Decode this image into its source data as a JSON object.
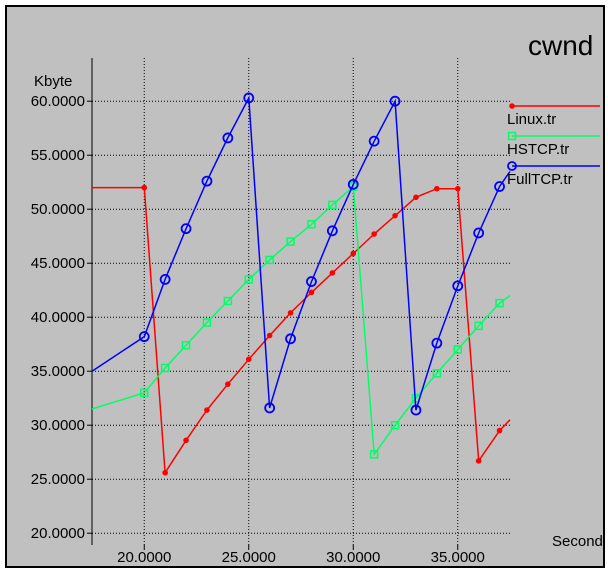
{
  "chart_data": {
    "type": "line",
    "title": "cwnd",
    "ylabel": "Kbyte",
    "xlabel": "Second",
    "xlim": [
      17.5,
      37.5
    ],
    "ylim": [
      19.0,
      64.0
    ],
    "x_ticks": [
      "20.0000",
      "25.0000",
      "30.0000",
      "35.0000"
    ],
    "y_ticks": [
      "20.0000",
      "25.0000",
      "30.0000",
      "35.0000",
      "40.0000",
      "45.0000",
      "50.0000",
      "55.0000",
      "60.0000"
    ],
    "x_tick_values": [
      20,
      25,
      30,
      35
    ],
    "y_tick_values": [
      20,
      25,
      30,
      35,
      40,
      45,
      50,
      55,
      60
    ],
    "grid": true,
    "legend_position": "right",
    "series": [
      {
        "name": "Linux.tr",
        "color": "#ff0000",
        "marker": "dot",
        "points": [
          [
            17.5,
            52.0
          ],
          [
            20,
            52.0
          ],
          [
            21,
            25.6
          ],
          [
            22,
            28.6
          ],
          [
            23,
            31.4
          ],
          [
            24,
            33.8
          ],
          [
            25,
            36.1
          ],
          [
            26,
            38.3
          ],
          [
            27,
            40.4
          ],
          [
            28,
            42.3
          ],
          [
            29,
            44.1
          ],
          [
            30,
            45.9
          ],
          [
            31,
            47.7
          ],
          [
            32,
            49.4
          ],
          [
            33,
            51.1
          ],
          [
            34,
            51.9
          ],
          [
            35,
            51.9
          ],
          [
            36,
            26.7
          ],
          [
            37,
            29.5
          ],
          [
            37.5,
            30.5
          ]
        ]
      },
      {
        "name": "HSTCP.tr",
        "color": "#00ff66",
        "marker": "square",
        "points": [
          [
            17.5,
            31.5
          ],
          [
            20,
            33.0
          ],
          [
            21,
            35.3
          ],
          [
            22,
            37.4
          ],
          [
            23,
            39.5
          ],
          [
            24,
            41.5
          ],
          [
            25,
            43.5
          ],
          [
            26,
            45.3
          ],
          [
            27,
            47.0
          ],
          [
            28,
            48.6
          ],
          [
            29,
            50.4
          ],
          [
            30,
            52.1
          ],
          [
            31,
            27.3
          ],
          [
            32,
            30.0
          ],
          [
            33,
            32.5
          ],
          [
            34,
            34.8
          ],
          [
            35,
            37.0
          ],
          [
            36,
            39.2
          ],
          [
            37,
            41.3
          ],
          [
            37.5,
            42.0
          ]
        ]
      },
      {
        "name": "FullTCP.tr",
        "color": "#0000ff",
        "marker": "circle",
        "points": [
          [
            17.5,
            35.0
          ],
          [
            20,
            38.2
          ],
          [
            21,
            43.5
          ],
          [
            22,
            48.2
          ],
          [
            23,
            52.6
          ],
          [
            24,
            56.6
          ],
          [
            25,
            60.3
          ],
          [
            26,
            31.6
          ],
          [
            27,
            38.0
          ],
          [
            28,
            43.3
          ],
          [
            29,
            48.0
          ],
          [
            30,
            52.3
          ],
          [
            31,
            56.3
          ],
          [
            32,
            60.0
          ],
          [
            33,
            31.4
          ],
          [
            34,
            37.6
          ],
          [
            35,
            42.9
          ],
          [
            36,
            47.8
          ],
          [
            37,
            52.1
          ],
          [
            37.5,
            53.5
          ]
        ]
      }
    ]
  }
}
